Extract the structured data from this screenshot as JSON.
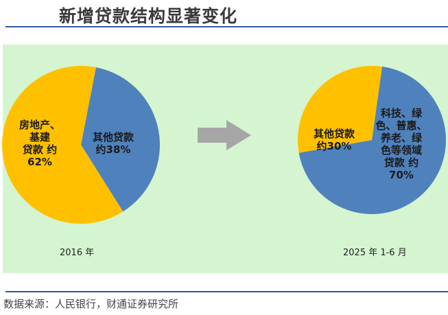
{
  "title": "新增贷款结构显著变化",
  "source": "数据来源：人民银行，财通证券研究所",
  "chart_data": [
    {
      "type": "pie",
      "caption": "2016 年",
      "slices": [
        {
          "label_lines": [
            "房地产、",
            "基建",
            "贷款 约",
            "62%"
          ],
          "value": 62,
          "color": "#ffc000"
        },
        {
          "label_lines": [
            "其他贷款",
            "约38%"
          ],
          "value": 38,
          "color": "#4f81bd"
        }
      ]
    },
    {
      "type": "pie",
      "caption": "2025 年 1-6 月",
      "slices": [
        {
          "label_lines": [
            "其他贷款",
            "约30%"
          ],
          "value": 30,
          "color": "#ffc000"
        },
        {
          "label_lines": [
            "科技、绿",
            "色、普惠、",
            "养老、绿",
            "色等领域",
            "贷款 约",
            "70%"
          ],
          "value": 70,
          "color": "#4f81bd"
        }
      ]
    }
  ],
  "arrow_color": "#a6a6a6"
}
